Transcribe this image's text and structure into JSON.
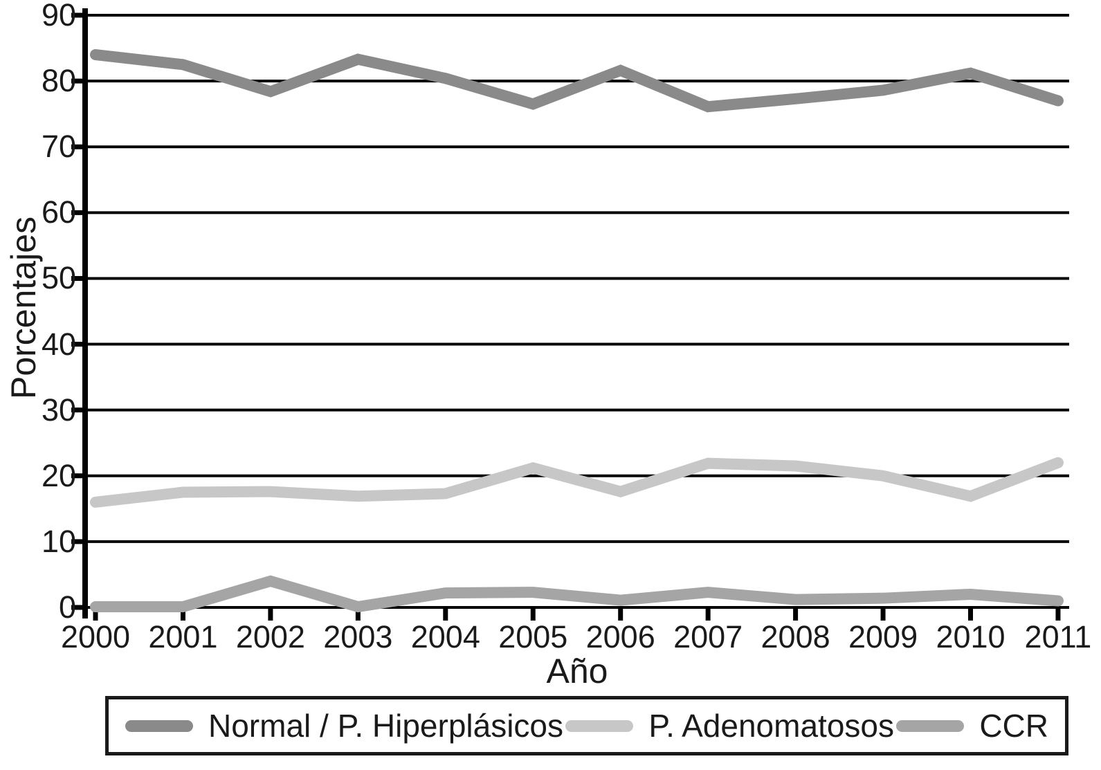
{
  "chart_data": {
    "type": "line",
    "title": "",
    "xlabel": "Año",
    "ylabel": "Porcentajes",
    "categories": [
      "2000",
      "2001",
      "2002",
      "2003",
      "2004",
      "2005",
      "2006",
      "2007",
      "2008",
      "2009",
      "2010",
      "2011"
    ],
    "ylim": [
      0,
      90
    ],
    "yticks": [
      0,
      10,
      20,
      30,
      40,
      50,
      60,
      70,
      80,
      90
    ],
    "grid": true,
    "legend_position": "bottom",
    "series": [
      {
        "name": "Normal / P. Hiperplásicos",
        "color": "#8a8a8a",
        "values": [
          84,
          82.5,
          78.4,
          83.3,
          80.4,
          76.5,
          81.6,
          76.1,
          77.3,
          78.6,
          81.2,
          77
        ]
      },
      {
        "name": "P. Adenomatosos",
        "color": "#c7c7c7",
        "values": [
          16,
          17.5,
          17.6,
          16.9,
          17.3,
          21.2,
          17.6,
          21.9,
          21.5,
          20,
          16.9,
          22
        ]
      },
      {
        "name": "CCR",
        "color": "#a5a5a5",
        "values": [
          0.1,
          0.1,
          4,
          0.1,
          2.2,
          2.3,
          1.1,
          2.3,
          1.2,
          1.4,
          2,
          1
        ]
      }
    ]
  },
  "colors": {
    "axis": "#000000",
    "text": "#1a1a1a"
  }
}
